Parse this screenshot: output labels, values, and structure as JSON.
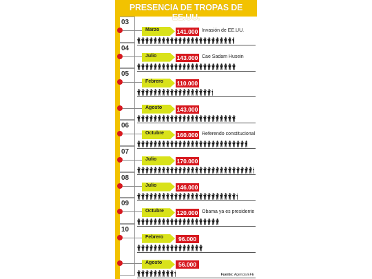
{
  "title": "PRESENCIA DE TROPAS DE EE.UU.",
  "source_label": "Fuente:",
  "source_name": "Agencia EFE",
  "colors": {
    "accent": "#f2c200",
    "value": "#d7191f",
    "month": "#d9e21a"
  },
  "chart_data": {
    "type": "bar",
    "title": "PRESENCIA DE TROPAS DE EE.UU.",
    "unit": "soldiers",
    "years": [
      "03",
      "04",
      "05",
      "06",
      "07",
      "08",
      "09",
      "10"
    ],
    "entries": [
      {
        "year": "03",
        "month": "Marzo",
        "value": 141000,
        "label": "141.000",
        "note": "Invasión de EE.UU."
      },
      {
        "year": "04",
        "month": "Julio",
        "value": 143000,
        "label": "143.000",
        "note": "Cae Sadam Husein"
      },
      {
        "year": "05",
        "month": "Febrero",
        "value": 110000,
        "label": "110.000",
        "note": ""
      },
      {
        "year": "05",
        "month": "Agosto",
        "value": 143000,
        "label": "143.000",
        "note": ""
      },
      {
        "year": "06",
        "month": "Octubre",
        "value": 160000,
        "label": "160.000",
        "note": "Referendo constitucional"
      },
      {
        "year": "07",
        "month": "Julio",
        "value": 170000,
        "label": "170.000",
        "note": ""
      },
      {
        "year": "08",
        "month": "Julio",
        "value": 146000,
        "label": "146.000",
        "note": ""
      },
      {
        "year": "09",
        "month": "Octubre",
        "value": 120000,
        "label": "120.000",
        "note": "Obama ya es presidente"
      },
      {
        "year": "10",
        "month": "Febrero",
        "value": 96000,
        "label": "96.000",
        "note": ""
      },
      {
        "year": "10",
        "month": "Agosto",
        "value": 56000,
        "label": "56.000",
        "note": ""
      }
    ]
  }
}
